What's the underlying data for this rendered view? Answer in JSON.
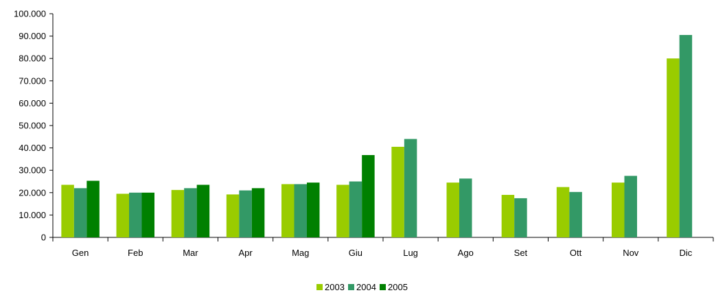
{
  "chart_data": {
    "type": "bar",
    "categories": [
      "Gen",
      "Feb",
      "Mar",
      "Apr",
      "Mag",
      "Giu",
      "Lug",
      "Ago",
      "Set",
      "Ott",
      "Nov",
      "Dic"
    ],
    "series": [
      {
        "name": "2003",
        "color": "#99cc00",
        "values": [
          23500,
          19500,
          21200,
          19200,
          23800,
          23500,
          40500,
          24500,
          19000,
          22500,
          24500,
          80000
        ]
      },
      {
        "name": "2004",
        "color": "#339966",
        "values": [
          22000,
          20000,
          22000,
          21000,
          23800,
          25000,
          44000,
          26300,
          17500,
          20300,
          27500,
          90500
        ]
      },
      {
        "name": "2005",
        "color": "#008000",
        "values": [
          25300,
          20000,
          23500,
          22000,
          24500,
          36800,
          null,
          null,
          null,
          null,
          null,
          null
        ]
      }
    ],
    "y_ticks": [
      "0",
      "10.000",
      "20.000",
      "30.000",
      "40.000",
      "50.000",
      "60.000",
      "70.000",
      "80.000",
      "90.000",
      "100.000"
    ],
    "ylim": [
      0,
      100000
    ],
    "ytick_step": 10000,
    "grid": false,
    "legend_position": "bottom-center"
  }
}
